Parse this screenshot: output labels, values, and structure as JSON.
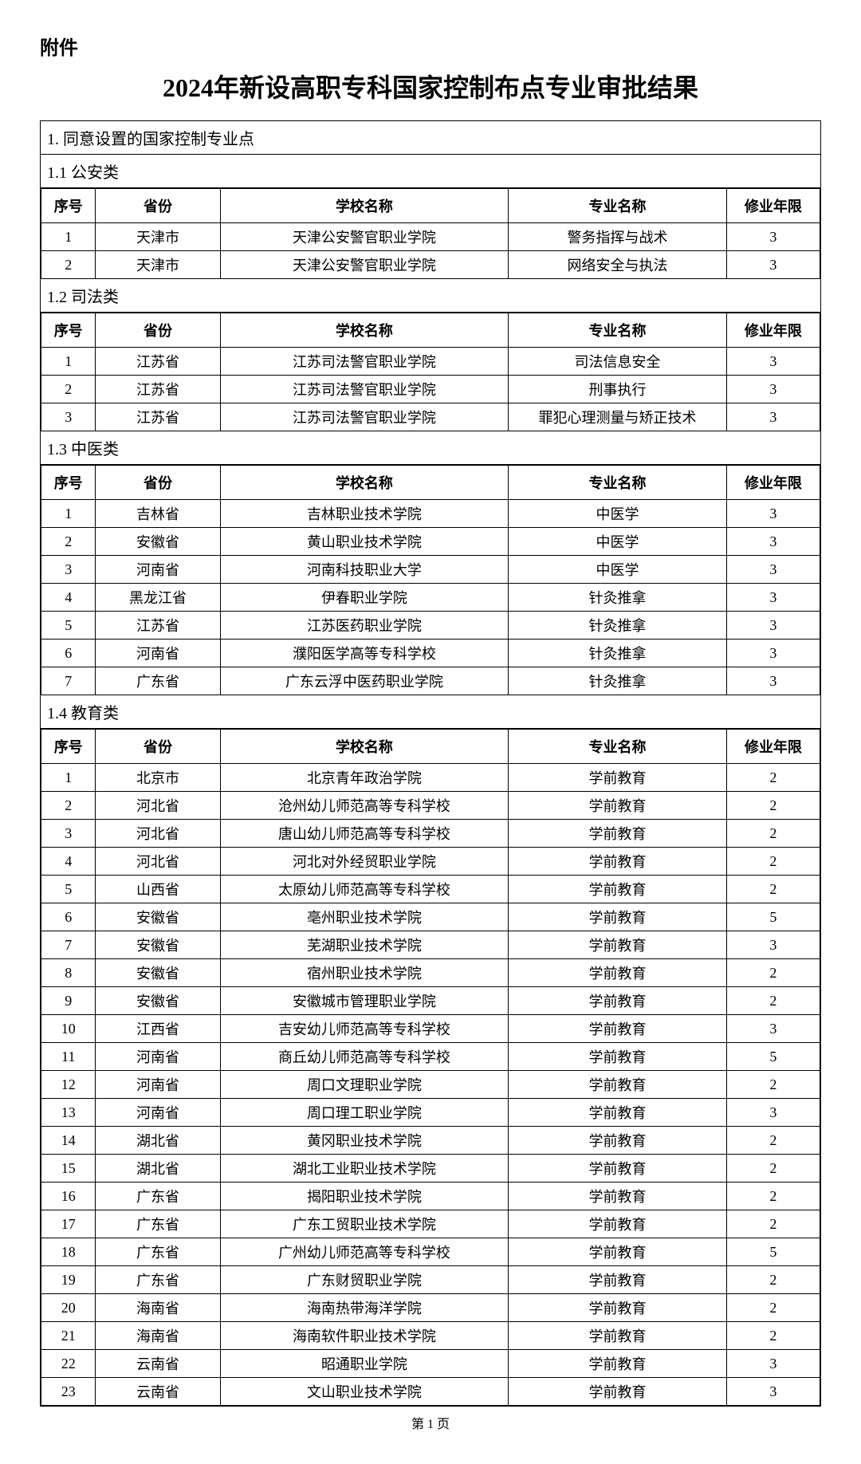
{
  "labels": {
    "attachment": "附件",
    "title": "2024年新设高职专科国家控制布点专业审批结果",
    "section1": "1. 同意设置的国家控制专业点",
    "sub11": "1.1 公安类",
    "sub12": "1.2 司法类",
    "sub13": "1.3 中医类",
    "sub14": "1.4 教育类",
    "pageNum": "第 1 页",
    "col_idx": "序号",
    "col_prov": "省份",
    "col_school": "学校名称",
    "col_major": "专业名称",
    "col_years": "修业年限"
  },
  "tables": {
    "t11": [
      {
        "idx": "1",
        "prov": "天津市",
        "school": "天津公安警官职业学院",
        "major": "警务指挥与战术",
        "years": "3"
      },
      {
        "idx": "2",
        "prov": "天津市",
        "school": "天津公安警官职业学院",
        "major": "网络安全与执法",
        "years": "3"
      }
    ],
    "t12": [
      {
        "idx": "1",
        "prov": "江苏省",
        "school": "江苏司法警官职业学院",
        "major": "司法信息安全",
        "years": "3"
      },
      {
        "idx": "2",
        "prov": "江苏省",
        "school": "江苏司法警官职业学院",
        "major": "刑事执行",
        "years": "3"
      },
      {
        "idx": "3",
        "prov": "江苏省",
        "school": "江苏司法警官职业学院",
        "major": "罪犯心理测量与矫正技术",
        "years": "3"
      }
    ],
    "t13": [
      {
        "idx": "1",
        "prov": "吉林省",
        "school": "吉林职业技术学院",
        "major": "中医学",
        "years": "3"
      },
      {
        "idx": "2",
        "prov": "安徽省",
        "school": "黄山职业技术学院",
        "major": "中医学",
        "years": "3"
      },
      {
        "idx": "3",
        "prov": "河南省",
        "school": "河南科技职业大学",
        "major": "中医学",
        "years": "3"
      },
      {
        "idx": "4",
        "prov": "黑龙江省",
        "school": "伊春职业学院",
        "major": "针灸推拿",
        "years": "3"
      },
      {
        "idx": "5",
        "prov": "江苏省",
        "school": "江苏医药职业学院",
        "major": "针灸推拿",
        "years": "3"
      },
      {
        "idx": "6",
        "prov": "河南省",
        "school": "濮阳医学高等专科学校",
        "major": "针灸推拿",
        "years": "3"
      },
      {
        "idx": "7",
        "prov": "广东省",
        "school": "广东云浮中医药职业学院",
        "major": "针灸推拿",
        "years": "3"
      }
    ],
    "t14": [
      {
        "idx": "1",
        "prov": "北京市",
        "school": "北京青年政治学院",
        "major": "学前教育",
        "years": "2"
      },
      {
        "idx": "2",
        "prov": "河北省",
        "school": "沧州幼儿师范高等专科学校",
        "major": "学前教育",
        "years": "2"
      },
      {
        "idx": "3",
        "prov": "河北省",
        "school": "唐山幼儿师范高等专科学校",
        "major": "学前教育",
        "years": "2"
      },
      {
        "idx": "4",
        "prov": "河北省",
        "school": "河北对外经贸职业学院",
        "major": "学前教育",
        "years": "2"
      },
      {
        "idx": "5",
        "prov": "山西省",
        "school": "太原幼儿师范高等专科学校",
        "major": "学前教育",
        "years": "2"
      },
      {
        "idx": "6",
        "prov": "安徽省",
        "school": "亳州职业技术学院",
        "major": "学前教育",
        "years": "5"
      },
      {
        "idx": "7",
        "prov": "安徽省",
        "school": "芜湖职业技术学院",
        "major": "学前教育",
        "years": "3"
      },
      {
        "idx": "8",
        "prov": "安徽省",
        "school": "宿州职业技术学院",
        "major": "学前教育",
        "years": "2"
      },
      {
        "idx": "9",
        "prov": "安徽省",
        "school": "安徽城市管理职业学院",
        "major": "学前教育",
        "years": "2"
      },
      {
        "idx": "10",
        "prov": "江西省",
        "school": "吉安幼儿师范高等专科学校",
        "major": "学前教育",
        "years": "3"
      },
      {
        "idx": "11",
        "prov": "河南省",
        "school": "商丘幼儿师范高等专科学校",
        "major": "学前教育",
        "years": "5"
      },
      {
        "idx": "12",
        "prov": "河南省",
        "school": "周口文理职业学院",
        "major": "学前教育",
        "years": "2"
      },
      {
        "idx": "13",
        "prov": "河南省",
        "school": "周口理工职业学院",
        "major": "学前教育",
        "years": "3"
      },
      {
        "idx": "14",
        "prov": "湖北省",
        "school": "黄冈职业技术学院",
        "major": "学前教育",
        "years": "2"
      },
      {
        "idx": "15",
        "prov": "湖北省",
        "school": "湖北工业职业技术学院",
        "major": "学前教育",
        "years": "2"
      },
      {
        "idx": "16",
        "prov": "广东省",
        "school": "揭阳职业技术学院",
        "major": "学前教育",
        "years": "2"
      },
      {
        "idx": "17",
        "prov": "广东省",
        "school": "广东工贸职业技术学院",
        "major": "学前教育",
        "years": "2"
      },
      {
        "idx": "18",
        "prov": "广东省",
        "school": "广州幼儿师范高等专科学校",
        "major": "学前教育",
        "years": "5"
      },
      {
        "idx": "19",
        "prov": "广东省",
        "school": "广东财贸职业学院",
        "major": "学前教育",
        "years": "2"
      },
      {
        "idx": "20",
        "prov": "海南省",
        "school": "海南热带海洋学院",
        "major": "学前教育",
        "years": "2"
      },
      {
        "idx": "21",
        "prov": "海南省",
        "school": "海南软件职业技术学院",
        "major": "学前教育",
        "years": "2"
      },
      {
        "idx": "22",
        "prov": "云南省",
        "school": "昭通职业学院",
        "major": "学前教育",
        "years": "3"
      },
      {
        "idx": "23",
        "prov": "云南省",
        "school": "文山职业技术学院",
        "major": "学前教育",
        "years": "3"
      }
    ]
  }
}
